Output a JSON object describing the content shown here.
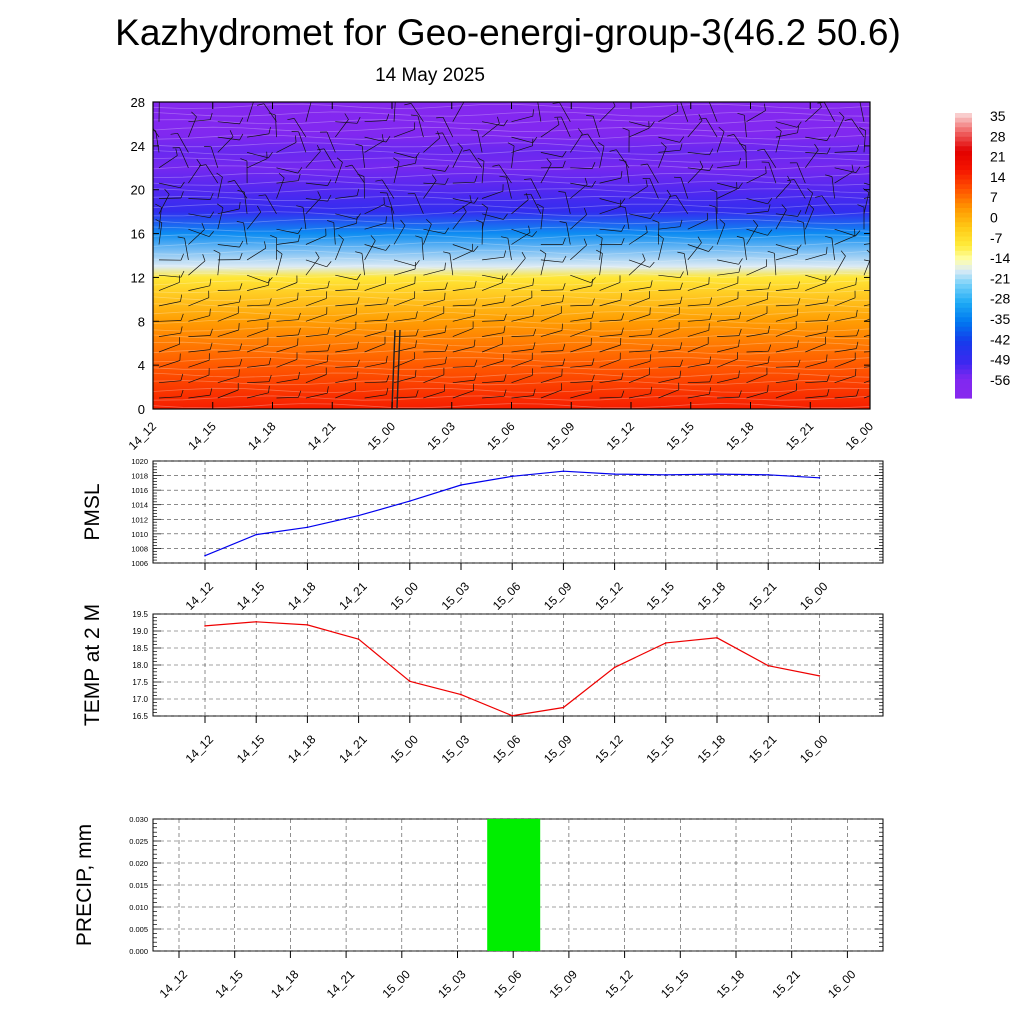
{
  "page": {
    "title": "Kazhydromet for Geo-energi-group-3(46.2 50.6)",
    "subtitle": "14 May 2025"
  },
  "chart_data": [
    {
      "id": "crossection",
      "type": "heatmap",
      "description_kind": "time-height temperature cross section with wind barbs",
      "x_ticklabels": [
        "14_12",
        "14_15",
        "14_18",
        "14_21",
        "15_00",
        "15_03",
        "15_06",
        "15_09",
        "15_12",
        "15_15",
        "15_18",
        "15_21",
        "16_00"
      ],
      "y_ticks": [
        0,
        4,
        8,
        12,
        16,
        20,
        24,
        28
      ],
      "ylim": [
        0,
        28
      ],
      "colorbar": {
        "labels": [
          "35",
          "28",
          "21",
          "14",
          "7",
          "0",
          "-7",
          "-14",
          "-21",
          "-28",
          "-35",
          "-42",
          "-49",
          "-56"
        ],
        "range": [
          -63,
          42
        ]
      },
      "temperature_profile": [
        {
          "level": 0,
          "temp": 20
        },
        {
          "level": 4,
          "temp": 13
        },
        {
          "level": 8,
          "temp": 6
        },
        {
          "level": 12,
          "temp": -6
        },
        {
          "level": 13,
          "temp": -16
        },
        {
          "level": 16,
          "temp": -32
        },
        {
          "level": 18,
          "temp": -48
        },
        {
          "level": 20,
          "temp": -52
        },
        {
          "level": 22,
          "temp": -55
        },
        {
          "level": 23.5,
          "temp": -54
        },
        {
          "level": 25,
          "temp": -57
        },
        {
          "level": 28,
          "temp": -60
        }
      ]
    },
    {
      "id": "pmsl",
      "type": "line",
      "ylabel": "PMSL",
      "x": [
        "14_12",
        "14_15",
        "14_18",
        "14_21",
        "15_00",
        "15_03",
        "15_06",
        "15_09",
        "15_12",
        "15_15",
        "15_18",
        "15_21",
        "16_00"
      ],
      "y_ticks": [
        1006,
        1008,
        1010,
        1012,
        1014,
        1016,
        1018,
        1020
      ],
      "ylim": [
        1006,
        1020
      ],
      "series": [
        {
          "values": [
            1007.0,
            1009.9,
            1010.9,
            1012.5,
            1014.5,
            1016.7,
            1017.9,
            1018.6,
            1018.2,
            1018.1,
            1018.2,
            1018.1,
            1017.7
          ]
        }
      ],
      "colors": {
        "line": "#0000ee"
      }
    },
    {
      "id": "temp2m",
      "type": "line",
      "ylabel": "TEMP at 2 M",
      "x": [
        "14_12",
        "14_15",
        "14_18",
        "14_21",
        "15_00",
        "15_03",
        "15_06",
        "15_09",
        "15_12",
        "15_15",
        "15_18",
        "15_21",
        "16_00"
      ],
      "y_ticks": [
        "16.5",
        "17.0",
        "17.5",
        "18.0",
        "18.5",
        "19.0",
        "19.5"
      ],
      "ylim": [
        16.5,
        19.5
      ],
      "series": [
        {
          "values": [
            19.15,
            19.27,
            19.18,
            18.76,
            17.52,
            17.13,
            16.51,
            16.75,
            17.93,
            18.65,
            18.8,
            17.98,
            17.68
          ]
        }
      ],
      "colors": {
        "line": "#ee0000"
      }
    },
    {
      "id": "precip",
      "type": "bar",
      "ylabel": "PRECIP, mm",
      "categories": [
        "14_12",
        "14_15",
        "14_18",
        "14_21",
        "15_00",
        "15_03",
        "15_06",
        "15_09",
        "15_12",
        "15_15",
        "15_18",
        "15_21",
        "16_00"
      ],
      "y_ticks": [
        "0.000",
        "0.005",
        "0.010",
        "0.015",
        "0.020",
        "0.025",
        "0.030"
      ],
      "ylim": [
        0,
        0.03
      ],
      "values": [
        0,
        0,
        0,
        0,
        0,
        0,
        0.03,
        0,
        0,
        0,
        0,
        0,
        0
      ],
      "colors": {
        "bar": "#00ee00"
      }
    }
  ]
}
